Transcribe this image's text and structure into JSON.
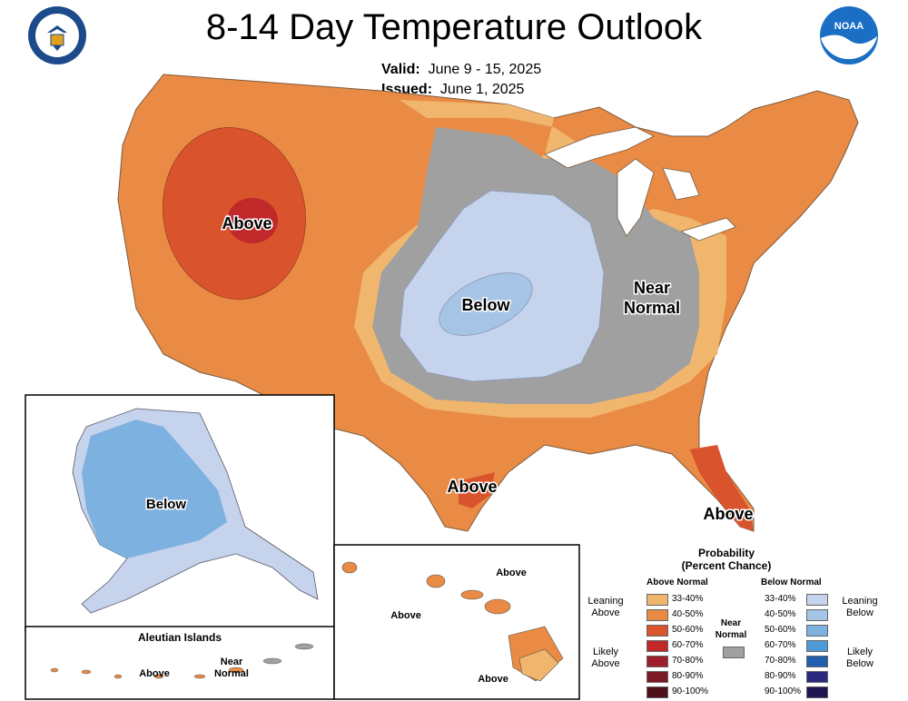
{
  "title": "8-14 Day Temperature Outlook",
  "valid": {
    "label": "Valid:",
    "value": "June 9 - 15, 2025"
  },
  "issued": {
    "label": "Issued:",
    "value": "June 1, 2025"
  },
  "logos": {
    "left": "department-of-commerce-seal",
    "right": "noaa-logo"
  },
  "map": {
    "labels": {
      "above_northwest": "Above",
      "below_central": "Below",
      "near_normal_east": "Near Normal",
      "above_texas": "Above",
      "above_florida": "Above",
      "alaska_below": "Below",
      "aleutian_title": "Aleutian Islands",
      "aleutian_above": "Above",
      "aleutian_near_normal": "Near Normal",
      "hawaii_above_1": "Above",
      "hawaii_above_2": "Above",
      "hawaii_above_3": "Above"
    },
    "colors": {
      "above_33_40": "#f0b66e",
      "above_40_50": "#e98b44",
      "above_50_60": "#d9542c",
      "above_60_70": "#c0282a",
      "above_70_80": "#9e1f2a",
      "above_80_90": "#7a1a26",
      "above_90_100": "#4f1119",
      "near_normal": "#a0a0a0",
      "below_33_40": "#c6d3ec",
      "below_40_50": "#a6c4e6",
      "below_50_60": "#7db1e0",
      "below_60_70": "#4f9ad6",
      "below_70_80": "#1f5fad",
      "below_80_90": "#2a2a80",
      "below_90_100": "#1e1650"
    }
  },
  "legend": {
    "title": "Probability",
    "subtitle": "(Percent Chance)",
    "above_header": "Above Normal",
    "below_header": "Below Normal",
    "near_label": "Near Normal",
    "leaning_above": "Leaning Above",
    "likely_above": "Likely Above",
    "leaning_below": "Leaning Below",
    "likely_below": "Likely Below",
    "above_bins": [
      "33-40%",
      "40-50%",
      "50-60%",
      "60-70%",
      "70-80%",
      "80-90%",
      "90-100%"
    ],
    "below_bins": [
      "33-40%",
      "40-50%",
      "50-60%",
      "60-70%",
      "70-80%",
      "80-90%",
      "90-100%"
    ]
  }
}
